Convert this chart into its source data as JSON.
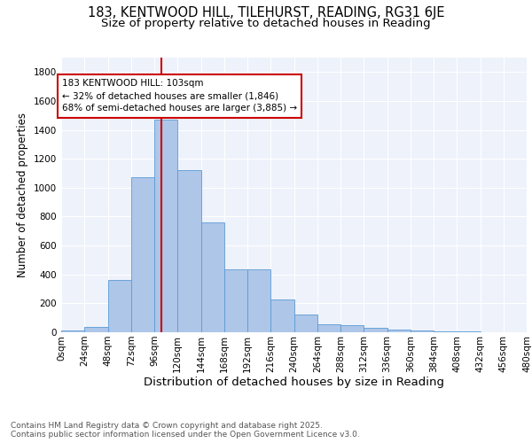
{
  "title1": "183, KENTWOOD HILL, TILEHURST, READING, RG31 6JE",
  "title2": "Size of property relative to detached houses in Reading",
  "xlabel": "Distribution of detached houses by size in Reading",
  "ylabel": "Number of detached properties",
  "bin_edges": [
    0,
    24,
    48,
    72,
    96,
    120,
    144,
    168,
    192,
    216,
    240,
    264,
    288,
    312,
    336,
    360,
    384,
    408,
    432,
    456,
    480
  ],
  "bar_heights": [
    10,
    35,
    360,
    1070,
    1470,
    1120,
    760,
    435,
    435,
    225,
    120,
    55,
    50,
    30,
    20,
    15,
    5,
    5,
    2,
    1
  ],
  "bar_color": "#aec6e8",
  "bar_edge_color": "#5b9bd5",
  "property_size": 103,
  "vline_color": "#cc0000",
  "annotation_text": "183 KENTWOOD HILL: 103sqm\n← 32% of detached houses are smaller (1,846)\n68% of semi-detached houses are larger (3,885) →",
  "annotation_box_color": "#ffffff",
  "annotation_box_edge": "#cc0000",
  "ylim": [
    0,
    1900
  ],
  "yticks": [
    0,
    200,
    400,
    600,
    800,
    1000,
    1200,
    1400,
    1600,
    1800
  ],
  "xtick_labels": [
    "0sqm",
    "24sqm",
    "48sqm",
    "72sqm",
    "96sqm",
    "120sqm",
    "144sqm",
    "168sqm",
    "192sqm",
    "216sqm",
    "240sqm",
    "264sqm",
    "288sqm",
    "312sqm",
    "336sqm",
    "360sqm",
    "384sqm",
    "408sqm",
    "432sqm",
    "456sqm",
    "480sqm"
  ],
  "background_color": "#eef2fb",
  "grid_color": "#ffffff",
  "footer": "Contains HM Land Registry data © Crown copyright and database right 2025.\nContains public sector information licensed under the Open Government Licence v3.0.",
  "title1_fontsize": 10.5,
  "title2_fontsize": 9.5,
  "xlabel_fontsize": 9.5,
  "ylabel_fontsize": 8.5,
  "tick_fontsize": 7.5,
  "footer_fontsize": 6.5
}
